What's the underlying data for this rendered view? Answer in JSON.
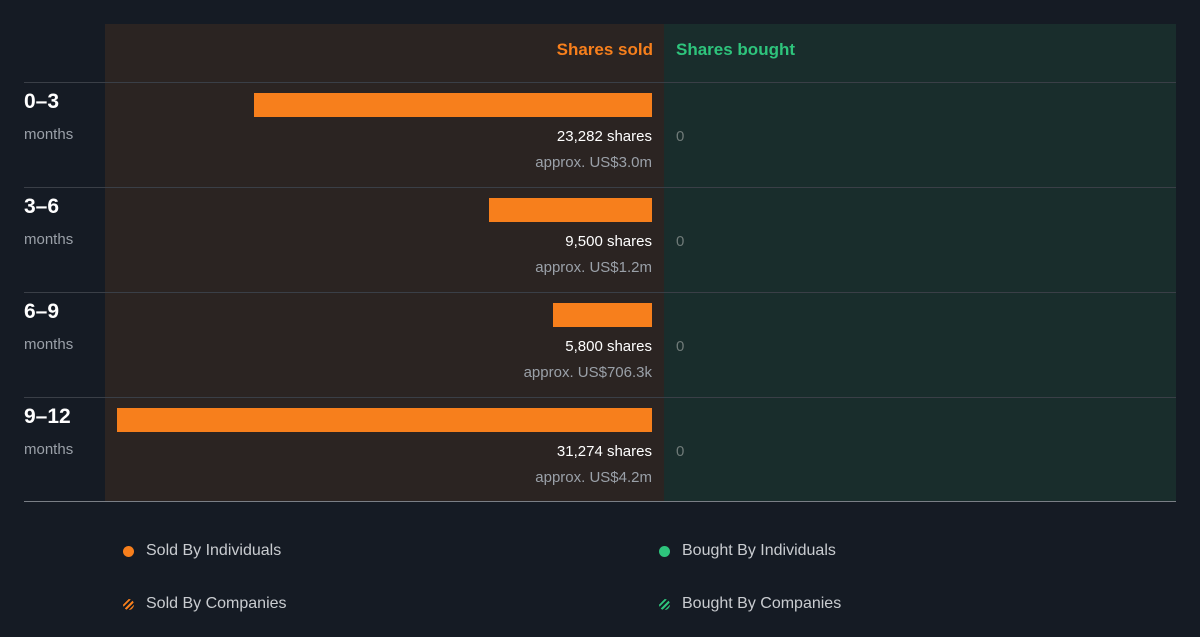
{
  "chart_data": {
    "type": "bar",
    "orientation": "horizontal",
    "title": "",
    "headers": {
      "sold": "Shares sold",
      "bought": "Shares bought"
    },
    "categories": [
      {
        "period": "0–3",
        "unit": "months"
      },
      {
        "period": "3–6",
        "unit": "months"
      },
      {
        "period": "6–9",
        "unit": "months"
      },
      {
        "period": "9–12",
        "unit": "months"
      }
    ],
    "series": [
      {
        "name": "Sold By Individuals",
        "values": [
          23282,
          9500,
          5800,
          31274
        ],
        "labels": [
          "23,282 shares",
          "9,500 shares",
          "5,800 shares",
          "31,274 shares"
        ],
        "approx": [
          "approx. US$3.0m",
          "approx. US$1.2m",
          "approx. US$706.3k",
          "approx. US$4.2m"
        ]
      },
      {
        "name": "Bought By Individuals",
        "values": [
          0,
          0,
          0,
          0
        ],
        "labels": [
          "0",
          "0",
          "0",
          "0"
        ]
      }
    ],
    "legend": [
      {
        "name": "Sold By Individuals",
        "color": "#f77f1c",
        "style": "solid"
      },
      {
        "name": "Bought By Individuals",
        "color": "#2ec47c",
        "style": "solid"
      },
      {
        "name": "Sold By Companies",
        "color": "#f77f1c",
        "style": "striped"
      },
      {
        "name": "Bought By Companies",
        "color": "#2ec47c",
        "style": "striped"
      }
    ],
    "legend_position": "bottom",
    "colors": {
      "sold": "#f77f1c",
      "bought": "#2ec47c"
    }
  }
}
